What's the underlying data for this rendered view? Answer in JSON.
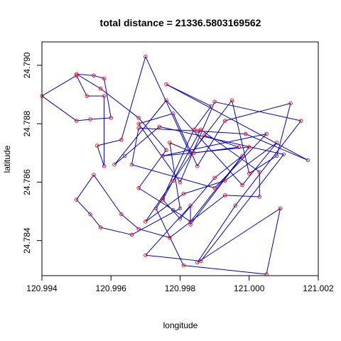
{
  "chart_data": {
    "type": "line",
    "title": "total distance = 21336.5803169562",
    "xlabel": "longitude",
    "ylabel": "latitude",
    "xlim": [
      120.994,
      121.002
    ],
    "ylim": [
      24.7828,
      24.7908
    ],
    "xticks": [
      120.994,
      120.996,
      120.998,
      121.0,
      121.002
    ],
    "xtick_labels": [
      "120.994",
      "120.996",
      "120.998",
      "121.000",
      "121.002"
    ],
    "yticks": [
      24.784,
      24.786,
      24.788,
      24.79
    ],
    "ytick_labels": [
      "24.784",
      "24.786",
      "24.788",
      "24.790"
    ],
    "grid": false,
    "line_color": "#0000cc",
    "point_color": "#ff0000",
    "closed": true,
    "series": [
      {
        "x": [
          120.994,
          120.995,
          120.9953,
          120.9958,
          120.9958,
          120.9956,
          120.9963,
          120.997,
          120.9983,
          120.9995,
          121.0,
          121.0008,
          121.0012,
          120.9993,
          120.9985,
          120.9978,
          120.9968,
          120.998,
          120.999,
          121.0015,
          120.9996,
          120.9985,
          121.0009,
          121.0005,
          120.9981,
          120.9973,
          120.9975,
          120.9984,
          120.9989,
          120.9976,
          121.0017,
          120.9999,
          120.9985,
          120.9968,
          120.9966,
          120.999,
          121.0005,
          120.9975,
          121.0,
          120.9983,
          120.9983,
          120.997,
          120.9986,
          121.001,
          120.9974,
          120.9964,
          120.9961,
          120.9976,
          120.9998,
          121.0008,
          120.9993,
          120.9981,
          120.997,
          120.9978,
          120.9987,
          120.9997,
          120.9984,
          120.9977,
          120.998,
          120.9966,
          120.9957,
          120.9954,
          120.995,
          120.9955,
          120.9963,
          120.9968,
          120.9977,
          120.9993,
          121.0003,
          121.0003,
          120.9986,
          120.9975,
          120.998,
          120.999,
          120.9998,
          120.9983,
          120.9978,
          120.9968,
          120.9976,
          120.9968,
          120.9957,
          120.995,
          120.9955,
          120.9958,
          120.996,
          120.9954,
          120.995
        ],
        "y": [
          24.78895,
          24.78965,
          24.78895,
          24.78895,
          24.78655,
          24.78725,
          24.78745,
          24.7903,
          24.78695,
          24.7888,
          24.7863,
          24.7869,
          24.7887,
          24.7881,
          24.78655,
          24.78835,
          24.788,
          24.786,
          24.78875,
          24.7881,
          24.7852,
          24.78325,
          24.7851,
          24.78285,
          24.78315,
          24.7851,
          24.78545,
          24.7878,
          24.7886,
          24.78935,
          24.78675,
          24.78765,
          24.78775,
          24.78785,
          24.7866,
          24.7858,
          24.78765,
          24.7869,
          24.7872,
          24.78455,
          24.7852,
          24.7835,
          24.7833,
          24.78695,
          24.7879,
          24.7869,
          24.7866,
          24.7888,
          24.7859,
          24.78735,
          24.78605,
          24.7856,
          24.78465,
          24.78605,
          24.7876,
          24.7872,
          24.787,
          24.78735,
          24.7851,
          24.7842,
          24.78445,
          24.7849,
          24.7854,
          24.78625,
          24.7849,
          24.7844,
          24.7841,
          24.78555,
          24.7855,
          24.78635,
          24.7878,
          24.7854,
          24.78475,
          24.78615,
          24.7869,
          24.78465,
          24.78505,
          24.7858,
          24.7871,
          24.7882,
          24.7892,
          24.7897,
          24.78965,
          24.78955,
          24.7882,
          24.78815,
          24.7881
        ]
      }
    ]
  }
}
